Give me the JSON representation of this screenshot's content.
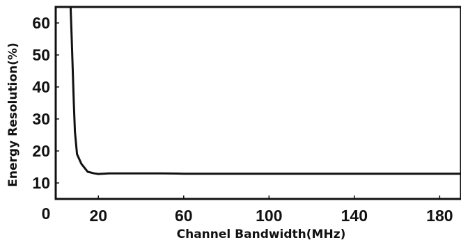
{
  "chart_data": {
    "type": "line",
    "title": "",
    "xlabel": "Channel Bandwidth(MHz)",
    "ylabel": "Energy Resolution(%)",
    "xlim": [
      0,
      190
    ],
    "ylim": [
      5,
      65
    ],
    "x_ticks": [
      20,
      60,
      100,
      140,
      180
    ],
    "y_ticks": [
      10,
      20,
      30,
      40,
      50,
      60
    ],
    "origin_label": "0",
    "grid": false,
    "legend": "none",
    "line_color": "#111111",
    "series": [
      {
        "x": [
          7,
          7.5,
          8,
          8.5,
          9,
          10,
          12,
          15,
          18,
          20,
          25,
          30,
          40,
          50,
          60,
          80,
          100,
          120,
          140,
          160,
          180,
          190
        ],
        "values": [
          65,
          55,
          45,
          35,
          26,
          19,
          16,
          13.5,
          13,
          12.8,
          13,
          13,
          13,
          13,
          12.9,
          12.9,
          12.9,
          12.9,
          12.9,
          12.9,
          12.9,
          12.9
        ]
      }
    ]
  }
}
